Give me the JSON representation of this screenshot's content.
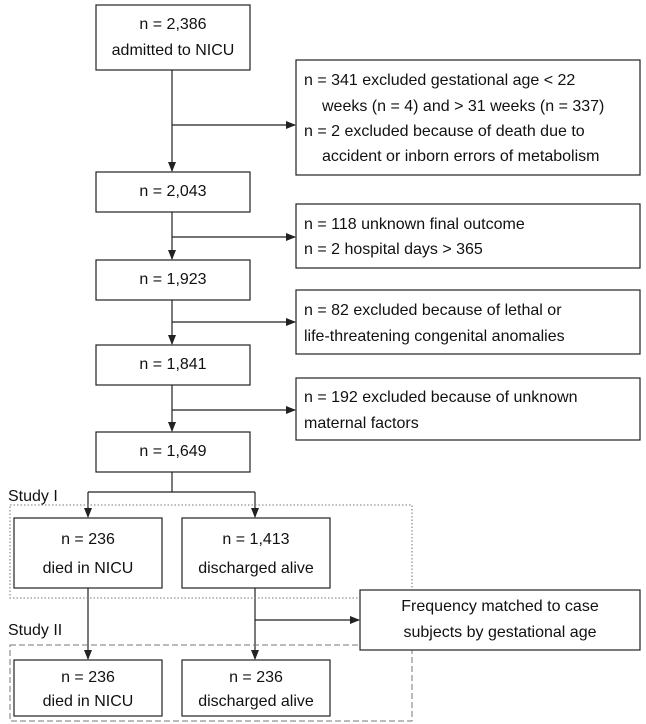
{
  "nodes": [
    {
      "lines": [
        "n = 2,386",
        "admitted to NICU"
      ]
    },
    {
      "lines": [
        "n = 2,043"
      ]
    },
    {
      "lines": [
        "n = 1,923"
      ]
    },
    {
      "lines": [
        "n = 1,841"
      ]
    },
    {
      "lines": [
        "n = 1,649"
      ]
    },
    {
      "lines": [
        "n = 236",
        "died in NICU"
      ]
    },
    {
      "lines": [
        "n = 1,413",
        "discharged alive"
      ]
    },
    {
      "lines": [
        "n = 236",
        "died in NICU"
      ]
    },
    {
      "lines": [
        "n = 236",
        "discharged alive"
      ]
    }
  ],
  "exclusions": [
    {
      "lines": [
        "n = 341 excluded gestational age < 22",
        "weeks (n = 4) and > 31 weeks (n = 337)",
        "n = 2 excluded because of death due to",
        "accident or inborn errors of metabolism"
      ]
    },
    {
      "lines": [
        "n = 118 unknown final outcome",
        "n = 2 hospital days > 365"
      ]
    },
    {
      "lines": [
        "n = 82 excluded because of lethal or",
        "life-threatening congenital anomalies"
      ]
    },
    {
      "lines": [
        "n = 192 excluded because of unknown",
        "maternal factors"
      ]
    },
    {
      "lines": [
        "Frequency matched to case",
        "subjects by gestational age"
      ]
    }
  ],
  "groups": [
    {
      "label": "Study I"
    },
    {
      "label": "Study II"
    }
  ]
}
